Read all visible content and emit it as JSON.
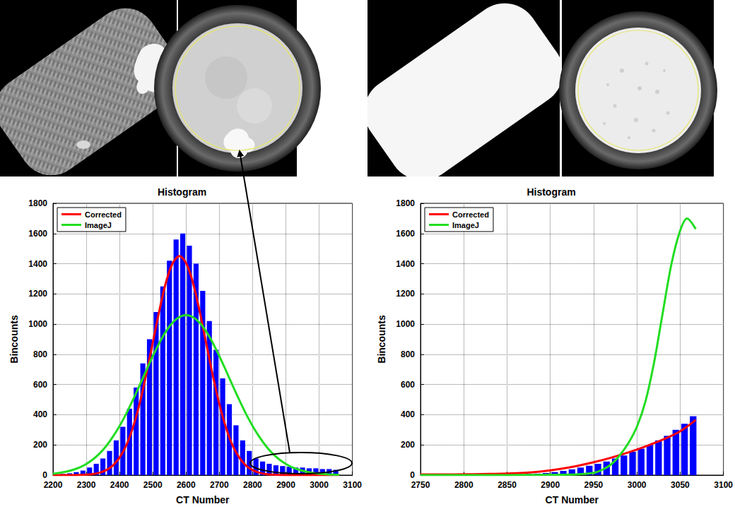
{
  "chart_data": [
    {
      "type": "bar",
      "title": "Histogram",
      "x_label": "CT Number",
      "y_label": "Bincounts",
      "bins": [
        2200,
        2220,
        2240,
        2260,
        2280,
        2300,
        2320,
        2340,
        2360,
        2380,
        2400,
        2420,
        2440,
        2460,
        2480,
        2500,
        2520,
        2540,
        2560,
        2580,
        2600,
        2620,
        2640,
        2660,
        2680,
        2700,
        2720,
        2740,
        2760,
        2780,
        2800,
        2820,
        2840,
        2860,
        2880,
        2900,
        2920,
        2940,
        2960,
        2980,
        3000,
        3020,
        3040,
        3060
      ],
      "values": [
        5,
        8,
        12,
        20,
        30,
        50,
        75,
        110,
        160,
        230,
        320,
        440,
        580,
        740,
        900,
        1080,
        1250,
        1420,
        1560,
        1600,
        1520,
        1400,
        1220,
        1020,
        830,
        640,
        470,
        330,
        230,
        160,
        110,
        90,
        75,
        65,
        60,
        55,
        50,
        50,
        45,
        45,
        40,
        40,
        35
      ],
      "color": "#0000ff",
      "series": [
        {
          "name": "Corrected",
          "type": "line",
          "color": "#ff0000",
          "x": [
            2200,
            2220,
            2240,
            2260,
            2280,
            2300,
            2320,
            2340,
            2360,
            2380,
            2400,
            2420,
            2440,
            2460,
            2480,
            2500,
            2520,
            2540,
            2560,
            2580,
            2600,
            2620,
            2640,
            2660,
            2680,
            2700,
            2720,
            2740,
            2760,
            2780,
            2800,
            2820,
            2840,
            2860,
            2880,
            2900,
            2920,
            2940,
            2960,
            2980,
            3000,
            3020,
            3040,
            3060
          ],
          "values": [
            0,
            0,
            0,
            0,
            1,
            3,
            7,
            16,
            33,
            64,
            116,
            196,
            314,
            471,
            664,
            879,
            1093,
            1280,
            1405,
            1450,
            1405,
            1280,
            1093,
            879,
            664,
            471,
            314,
            196,
            116,
            64,
            33,
            16,
            7,
            3,
            1,
            0,
            0,
            0,
            0,
            0,
            0,
            0,
            0,
            0
          ]
        },
        {
          "name": "ImageJ",
          "type": "line",
          "color": "#22dd22",
          "x": [
            2200,
            2220,
            2240,
            2260,
            2280,
            2300,
            2320,
            2340,
            2360,
            2380,
            2400,
            2420,
            2440,
            2460,
            2480,
            2500,
            2520,
            2540,
            2560,
            2580,
            2600,
            2620,
            2640,
            2660,
            2680,
            2700,
            2720,
            2740,
            2760,
            2780,
            2800,
            2820,
            2840,
            2860,
            2880,
            2900,
            2920,
            2940,
            2960,
            2980,
            3000,
            3020,
            3040,
            3060
          ],
          "values": [
            9,
            15,
            23,
            35,
            51,
            74,
            104,
            143,
            193,
            254,
            325,
            406,
            497,
            593,
            692,
            788,
            877,
            953,
            1011,
            1047,
            1060,
            1047,
            1011,
            953,
            877,
            788,
            692,
            593,
            497,
            406,
            325,
            254,
            193,
            143,
            104,
            74,
            51,
            35,
            23,
            15,
            9,
            6,
            3,
            2
          ]
        }
      ],
      "xlim": [
        2200,
        3100
      ],
      "xticks": [
        2200,
        2300,
        2400,
        2500,
        2600,
        2700,
        2800,
        2900,
        3000,
        3100
      ],
      "ylim": [
        0,
        1800
      ],
      "yticks": [
        0,
        200,
        400,
        600,
        800,
        1000,
        1200,
        1400,
        1600,
        1800
      ],
      "grid": true,
      "legend": "upper left"
    },
    {
      "type": "bar",
      "title": "Histogram",
      "x_label": "CT Number",
      "y_label": "Bincounts",
      "bins": [
        2760,
        2770,
        2780,
        2790,
        2800,
        2810,
        2820,
        2830,
        2840,
        2850,
        2860,
        2870,
        2880,
        2890,
        2900,
        2910,
        2920,
        2930,
        2940,
        2950,
        2960,
        2970,
        2980,
        2990,
        3000,
        3010,
        3020,
        3030,
        3040,
        3050,
        3060,
        3070
      ],
      "values": [
        2,
        2,
        2,
        3,
        3,
        3,
        4,
        4,
        5,
        5,
        6,
        8,
        10,
        14,
        20,
        28,
        38,
        50,
        62,
        75,
        90,
        110,
        130,
        155,
        175,
        200,
        230,
        260,
        300,
        340,
        390
      ],
      "color": "#0000ff",
      "series": [
        {
          "name": "Corrected",
          "type": "line",
          "color": "#ff0000",
          "x": [
            2750,
            2770,
            2790,
            2810,
            2830,
            2850,
            2870,
            2890,
            2910,
            2930,
            2950,
            2970,
            2990,
            3010,
            3030,
            3050,
            3068
          ],
          "values": [
            5,
            5,
            5,
            6,
            8,
            10,
            15,
            25,
            40,
            60,
            85,
            115,
            150,
            190,
            235,
            290,
            365
          ]
        },
        {
          "name": "ImageJ",
          "type": "line",
          "color": "#22dd22",
          "x": [
            2750,
            2800,
            2850,
            2900,
            2930,
            2950,
            2960,
            2970,
            2980,
            2990,
            3000,
            3010,
            3020,
            3030,
            3040,
            3050,
            3058,
            3068
          ],
          "values": [
            0,
            0,
            0,
            2,
            5,
            15,
            35,
            70,
            130,
            210,
            320,
            490,
            750,
            1080,
            1400,
            1620,
            1700,
            1630
          ]
        }
      ],
      "xlim": [
        2750,
        3100
      ],
      "xticks": [
        2750,
        2800,
        2850,
        2900,
        2950,
        3000,
        3050,
        3100
      ],
      "ylim": [
        0,
        1800
      ],
      "yticks": [
        0,
        200,
        400,
        600,
        800,
        1000,
        1200,
        1400,
        1600,
        1800
      ],
      "grid": true,
      "legend": "upper left"
    }
  ]
}
